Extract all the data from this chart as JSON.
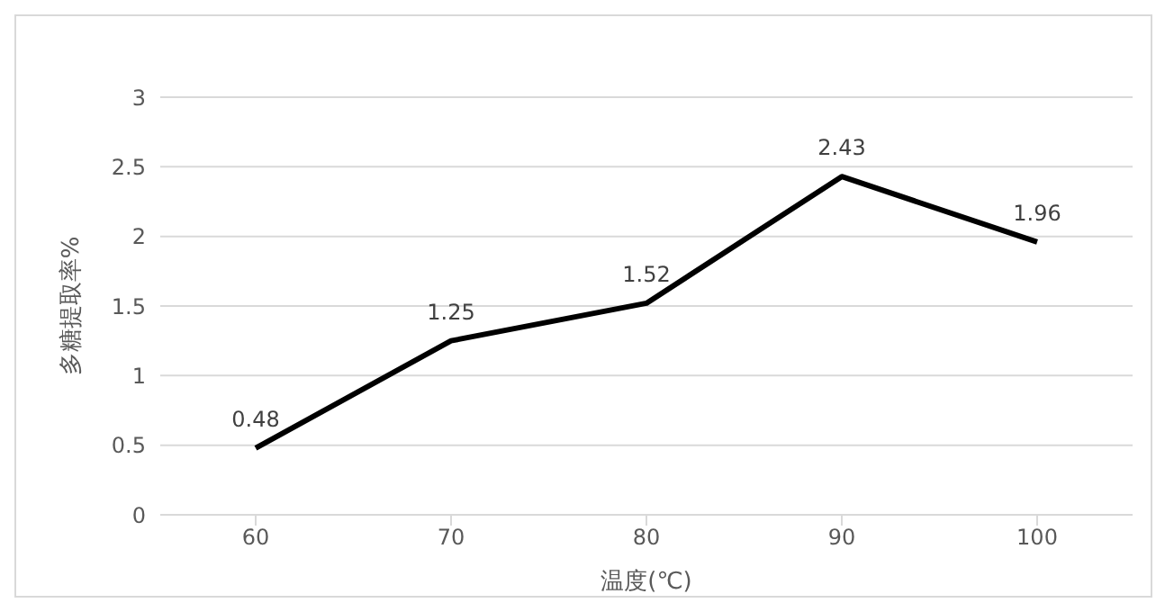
{
  "chart_data": {
    "type": "line",
    "xlabel": "温度(℃)",
    "ylabel": "多糖提取率%",
    "categories": [
      "60",
      "70",
      "80",
      "90",
      "100"
    ],
    "series": [
      {
        "color": "#000000",
        "values": [
          0.48,
          1.25,
          1.52,
          2.43,
          1.96
        ]
      }
    ],
    "ylim": [
      0,
      3
    ],
    "yticks": [
      0,
      0.5,
      1,
      1.5,
      2,
      2.5,
      3
    ],
    "grid": "y",
    "data_labels": true,
    "marker": "none",
    "line_style": "solid",
    "legend": false
  }
}
